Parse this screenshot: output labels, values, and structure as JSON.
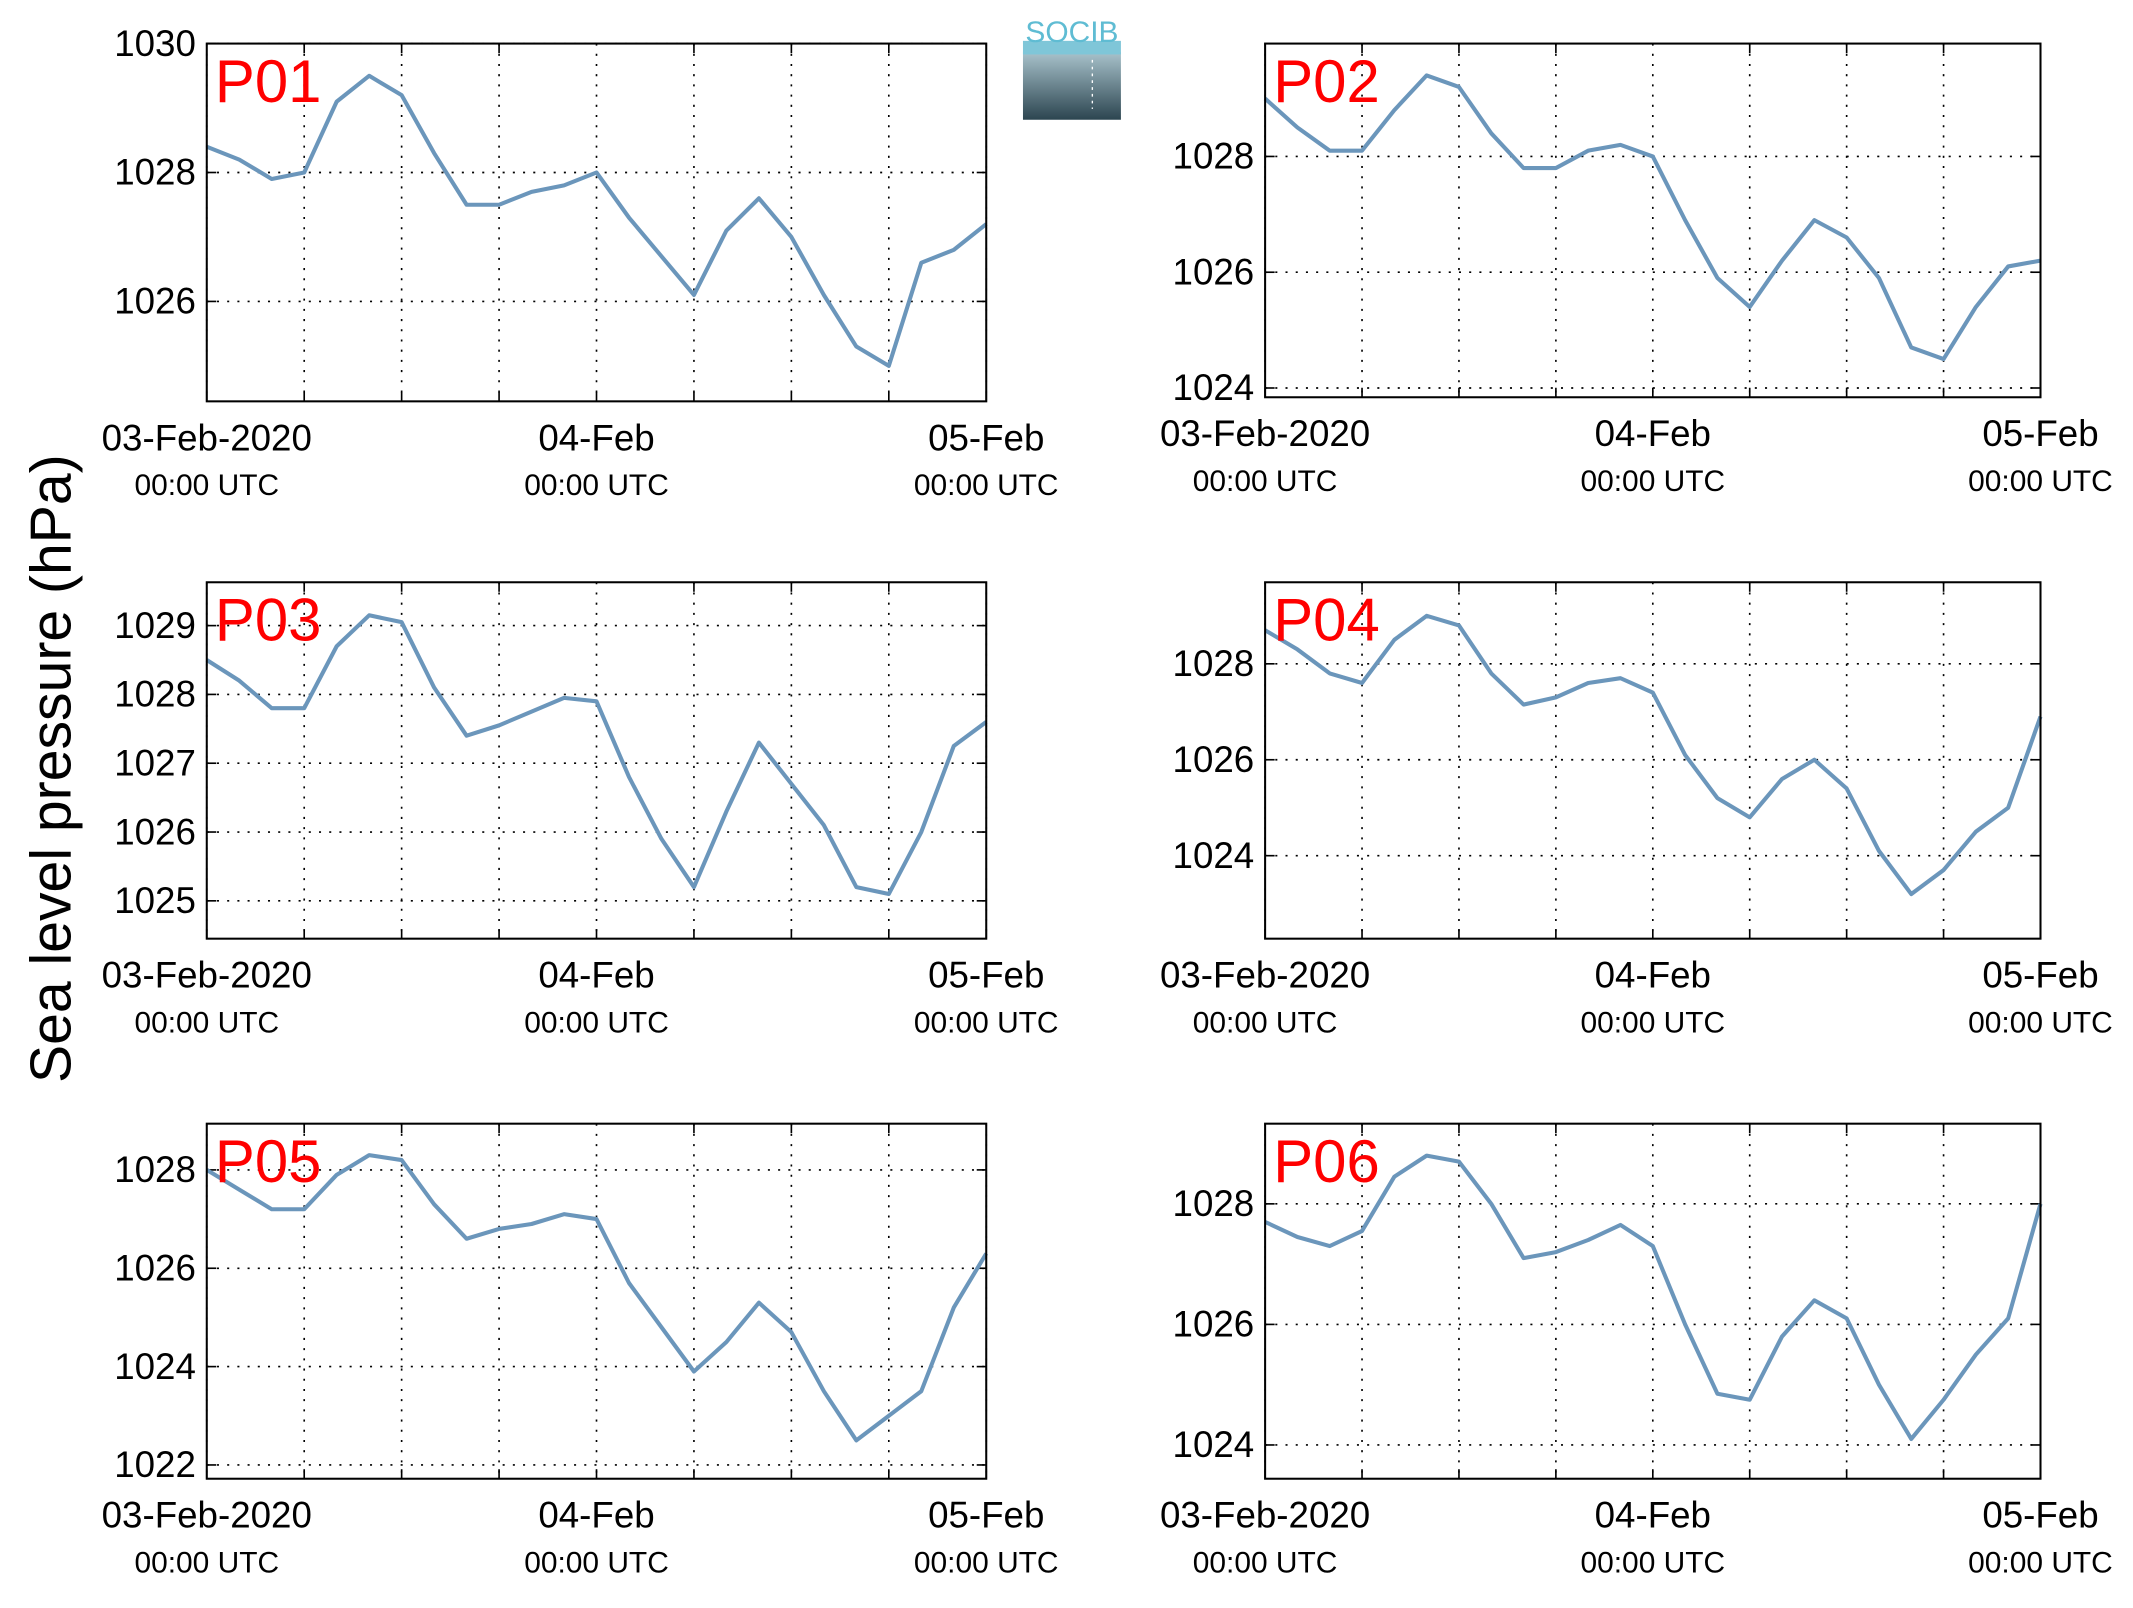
{
  "ylabel": "Sea level pressure (hPa)",
  "logo": "SOCIB",
  "chart_data": [
    {
      "type": "line",
      "title": "P01",
      "x": [
        0,
        2,
        4,
        6,
        8,
        10,
        12,
        14,
        16,
        18,
        20,
        22,
        24,
        26,
        28,
        30,
        32,
        34,
        36,
        38,
        40,
        42,
        44,
        46,
        48
      ],
      "xlim": [
        0,
        48
      ],
      "xticks": [
        {
          "value": 0,
          "label": [
            "03-Feb-2020",
            "00:00 UTC"
          ]
        },
        {
          "value": 24,
          "label": [
            "04-Feb",
            "00:00 UTC"
          ]
        },
        {
          "value": 48,
          "label": [
            "05-Feb",
            "00:00 UTC"
          ]
        }
      ],
      "xminor": [
        6,
        12,
        18,
        30,
        36,
        42
      ],
      "ylim": [
        1024.45,
        1030
      ],
      "yticks": [
        1026,
        1028,
        1030
      ],
      "grid": true,
      "series": [
        {
          "color": "#6b96bb",
          "values": [
            1028.4,
            1028.2,
            1027.9,
            1028.0,
            1029.1,
            1029.5,
            1029.2,
            1028.3,
            1027.5,
            1027.5,
            1027.7,
            1027.8,
            1028.0,
            1027.3,
            1026.7,
            1026.1,
            1027.1,
            1027.6,
            1027.0,
            1026.1,
            1025.3,
            1025.0,
            1026.6,
            1026.8,
            1027.2
          ]
        }
      ]
    },
    {
      "type": "line",
      "title": "P02",
      "x": [
        0,
        2,
        4,
        6,
        8,
        10,
        12,
        14,
        16,
        18,
        20,
        22,
        24,
        26,
        28,
        30,
        32,
        34,
        36,
        38,
        40,
        42,
        44,
        46,
        48
      ],
      "xlim": [
        0,
        48
      ],
      "xticks": [
        {
          "value": 0,
          "label": [
            "03-Feb-2020",
            "00:00 UTC"
          ]
        },
        {
          "value": 24,
          "label": [
            "04-Feb",
            "00:00 UTC"
          ]
        },
        {
          "value": 48,
          "label": [
            "05-Feb",
            "00:00 UTC"
          ]
        }
      ],
      "xminor": [
        6,
        12,
        18,
        30,
        36,
        42
      ],
      "ylim": [
        1023.84,
        1029.95
      ],
      "yticks": [
        1024,
        1026,
        1028
      ],
      "grid": true,
      "series": [
        {
          "color": "#6b96bb",
          "values": [
            1029.0,
            1028.5,
            1028.1,
            1028.1,
            1028.8,
            1029.4,
            1029.2,
            1028.4,
            1027.8,
            1027.8,
            1028.1,
            1028.2,
            1028.0,
            1026.9,
            1025.9,
            1025.4,
            1026.2,
            1026.9,
            1026.6,
            1025.9,
            1024.7,
            1024.5,
            1025.4,
            1026.1,
            1026.2
          ]
        }
      ]
    },
    {
      "type": "line",
      "title": "P03",
      "x": [
        0,
        2,
        4,
        6,
        8,
        10,
        12,
        14,
        16,
        18,
        20,
        22,
        24,
        26,
        28,
        30,
        32,
        34,
        36,
        38,
        40,
        42,
        44,
        46,
        48
      ],
      "xlim": [
        0,
        48
      ],
      "xticks": [
        {
          "value": 0,
          "label": [
            "03-Feb-2020",
            "00:00 UTC"
          ]
        },
        {
          "value": 24,
          "label": [
            "04-Feb",
            "00:00 UTC"
          ]
        },
        {
          "value": 48,
          "label": [
            "05-Feb",
            "00:00 UTC"
          ]
        }
      ],
      "xminor": [
        6,
        12,
        18,
        30,
        36,
        42
      ],
      "ylim": [
        1024.45,
        1029.63
      ],
      "yticks": [
        1025,
        1026,
        1027,
        1028,
        1029
      ],
      "grid": true,
      "series": [
        {
          "color": "#6b96bb",
          "values": [
            1028.5,
            1028.2,
            1027.8,
            1027.8,
            1028.7,
            1029.15,
            1029.05,
            1028.1,
            1027.4,
            1027.55,
            1027.75,
            1027.95,
            1027.9,
            1026.8,
            1025.9,
            1025.2,
            1026.3,
            1027.3,
            1026.7,
            1026.1,
            1025.2,
            1025.1,
            1026.0,
            1027.25,
            1027.6
          ]
        }
      ]
    },
    {
      "type": "line",
      "title": "P04",
      "x": [
        0,
        2,
        4,
        6,
        8,
        10,
        12,
        14,
        16,
        18,
        20,
        22,
        24,
        26,
        28,
        30,
        32,
        34,
        36,
        38,
        40,
        42,
        44,
        46,
        48
      ],
      "xlim": [
        0,
        48
      ],
      "xticks": [
        {
          "value": 0,
          "label": [
            "03-Feb-2020",
            "00:00 UTC"
          ]
        },
        {
          "value": 24,
          "label": [
            "04-Feb",
            "00:00 UTC"
          ]
        },
        {
          "value": 48,
          "label": [
            "05-Feb",
            "00:00 UTC"
          ]
        }
      ],
      "xminor": [
        6,
        12,
        18,
        30,
        36,
        42
      ],
      "ylim": [
        1022.27,
        1029.7
      ],
      "yticks": [
        1024,
        1026,
        1028
      ],
      "grid": true,
      "series": [
        {
          "color": "#6b96bb",
          "values": [
            1028.7,
            1028.3,
            1027.8,
            1027.6,
            1028.5,
            1029.0,
            1028.8,
            1027.8,
            1027.15,
            1027.3,
            1027.6,
            1027.7,
            1027.4,
            1026.1,
            1025.2,
            1024.8,
            1025.6,
            1026.0,
            1025.4,
            1024.1,
            1023.2,
            1023.7,
            1024.5,
            1025.0,
            1026.9
          ]
        }
      ]
    },
    {
      "type": "line",
      "title": "P05",
      "x": [
        0,
        2,
        4,
        6,
        8,
        10,
        12,
        14,
        16,
        18,
        20,
        22,
        24,
        26,
        28,
        30,
        32,
        34,
        36,
        38,
        40,
        42,
        44,
        46,
        48
      ],
      "xlim": [
        0,
        48
      ],
      "xticks": [
        {
          "value": 0,
          "label": [
            "03-Feb-2020",
            "00:00 UTC"
          ]
        },
        {
          "value": 24,
          "label": [
            "04-Feb",
            "00:00 UTC"
          ]
        },
        {
          "value": 48,
          "label": [
            "05-Feb",
            "00:00 UTC"
          ]
        }
      ],
      "xminor": [
        6,
        12,
        18,
        30,
        36,
        42
      ],
      "ylim": [
        1021.72,
        1028.94
      ],
      "yticks": [
        1022,
        1024,
        1026,
        1028
      ],
      "grid": true,
      "series": [
        {
          "color": "#6b96bb",
          "values": [
            1028.0,
            1027.6,
            1027.2,
            1027.2,
            1027.9,
            1028.3,
            1028.2,
            1027.3,
            1026.6,
            1026.8,
            1026.9,
            1027.1,
            1027.0,
            1025.7,
            1024.8,
            1023.9,
            1024.5,
            1025.3,
            1024.7,
            1023.5,
            1022.5,
            1023.0,
            1023.5,
            1025.2,
            1026.3
          ]
        }
      ]
    },
    {
      "type": "line",
      "title": "P06",
      "x": [
        0,
        2,
        4,
        6,
        8,
        10,
        12,
        14,
        16,
        18,
        20,
        22,
        24,
        26,
        28,
        30,
        32,
        34,
        36,
        38,
        40,
        42,
        44,
        46,
        48
      ],
      "xlim": [
        0,
        48
      ],
      "xticks": [
        {
          "value": 0,
          "label": [
            "03-Feb-2020",
            "00:00 UTC"
          ]
        },
        {
          "value": 24,
          "label": [
            "04-Feb",
            "00:00 UTC"
          ]
        },
        {
          "value": 48,
          "label": [
            "05-Feb",
            "00:00 UTC"
          ]
        }
      ],
      "xminor": [
        6,
        12,
        18,
        30,
        36,
        42
      ],
      "ylim": [
        1023.44,
        1029.33
      ],
      "yticks": [
        1024,
        1026,
        1028
      ],
      "grid": true,
      "series": [
        {
          "color": "#6b96bb",
          "values": [
            1027.7,
            1027.45,
            1027.3,
            1027.55,
            1028.45,
            1028.8,
            1028.7,
            1028.0,
            1027.1,
            1027.2,
            1027.4,
            1027.65,
            1027.3,
            1026.0,
            1024.85,
            1024.75,
            1025.8,
            1026.4,
            1026.1,
            1025.0,
            1024.1,
            1024.75,
            1025.5,
            1026.1,
            1028.0
          ]
        }
      ]
    }
  ]
}
